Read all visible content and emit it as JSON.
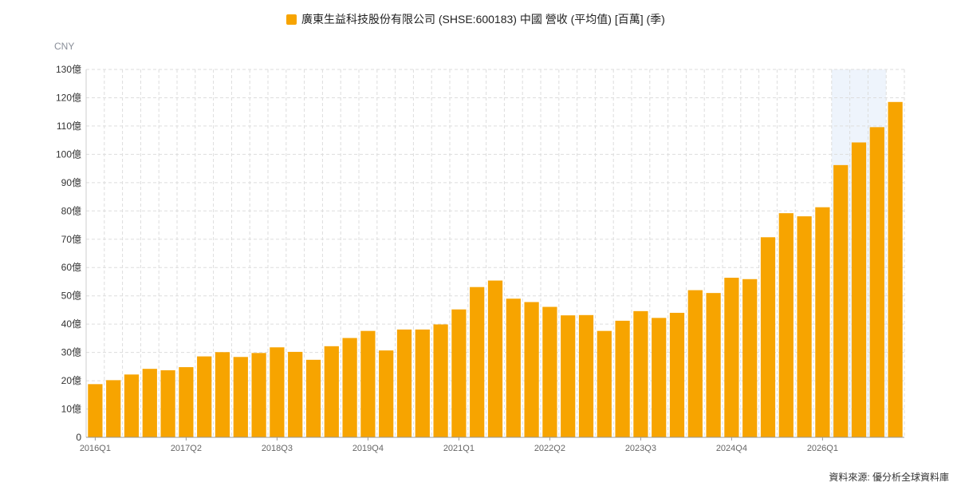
{
  "chart_data": {
    "type": "bar",
    "legend_label": "廣東生益科技股份有限公司 (SHSE:600183) 中國 營收 (平均值) [百萬] (季)",
    "unit": "CNY",
    "source": "資料來源: 優分析全球資料庫",
    "colors": {
      "bar": "#F7A400",
      "highlight": "#EEF4FC"
    },
    "y_ticks": [
      "0",
      "10億",
      "20億",
      "30億",
      "40億",
      "50億",
      "60億",
      "70億",
      "80億",
      "90億",
      "100億",
      "110億",
      "120億",
      "130億"
    ],
    "ylim": [
      0,
      130
    ],
    "x_labels": [
      "2016Q1",
      "2017Q2",
      "2018Q3",
      "2019Q4",
      "2021Q1",
      "2022Q2",
      "2023Q3",
      "2024Q4",
      "2026Q1"
    ],
    "categories": [
      "2016Q1",
      "2016Q2",
      "2016Q3",
      "2016Q4",
      "2017Q1",
      "2017Q2",
      "2017Q3",
      "2017Q4",
      "2018Q1",
      "2018Q2",
      "2018Q3",
      "2018Q4",
      "2019Q1",
      "2019Q2",
      "2019Q3",
      "2019Q4",
      "2020Q1",
      "2020Q2",
      "2020Q3",
      "2020Q4",
      "2021Q1",
      "2021Q2",
      "2021Q3",
      "2021Q4",
      "2022Q1",
      "2022Q2",
      "2022Q3",
      "2022Q4",
      "2023Q1",
      "2023Q2",
      "2023Q3",
      "2023Q4",
      "2024Q1",
      "2024Q2",
      "2024Q3",
      "2024Q4",
      "2025Q1",
      "2025Q2",
      "2025Q3",
      "2025Q4",
      "2026Q1",
      "2026Q2",
      "2026Q3",
      "2026Q4",
      "2027Q1"
    ],
    "values": [
      18.8,
      20.2,
      22.2,
      24.2,
      23.7,
      24.8,
      28.6,
      30.1,
      28.4,
      29.8,
      31.8,
      30.2,
      27.4,
      32.2,
      35.1,
      37.6,
      30.7,
      38.1,
      38.1,
      39.9,
      45.2,
      53.1,
      55.4,
      49.0,
      47.8,
      46.1,
      43.1,
      43.2,
      37.6,
      41.2,
      44.6,
      42.2,
      44.0,
      52.0,
      51.0,
      56.4,
      55.9,
      70.7,
      79.2,
      78.1,
      81.3,
      96.2,
      104.2,
      109.6,
      118.5
    ],
    "highlight_range": [
      "2026Q2",
      "2026Q4"
    ]
  }
}
